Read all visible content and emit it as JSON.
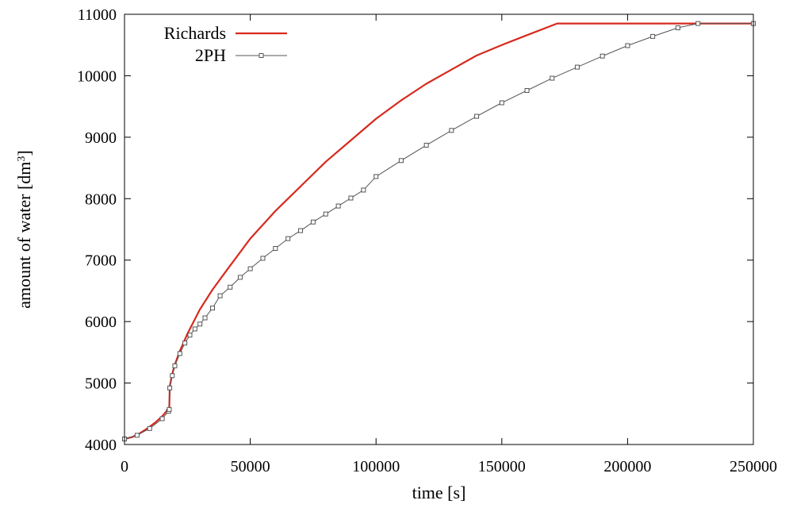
{
  "chart_data": {
    "type": "line",
    "xlabel": "time [s]",
    "ylabel_base": "amount of water [dm",
    "ylabel_sup": "3",
    "ylabel_end": "]",
    "xlim": [
      0,
      250000
    ],
    "ylim": [
      4000,
      11000
    ],
    "x_ticks": [
      0,
      50000,
      100000,
      150000,
      200000,
      250000
    ],
    "y_ticks": [
      4000,
      5000,
      6000,
      7000,
      8000,
      9000,
      10000,
      11000
    ],
    "grid": false,
    "legend_position": "top-left",
    "series": [
      {
        "name": "Richards",
        "color": "#d62a1e",
        "marker": "none",
        "points": [
          [
            0,
            4090
          ],
          [
            3000,
            4120
          ],
          [
            6000,
            4180
          ],
          [
            9000,
            4260
          ],
          [
            12000,
            4350
          ],
          [
            15000,
            4460
          ],
          [
            17500,
            4580
          ],
          [
            17800,
            4600
          ],
          [
            18000,
            4950
          ],
          [
            19000,
            5150
          ],
          [
            20000,
            5300
          ],
          [
            22000,
            5520
          ],
          [
            25000,
            5800
          ],
          [
            30000,
            6200
          ],
          [
            35000,
            6520
          ],
          [
            40000,
            6800
          ],
          [
            50000,
            7350
          ],
          [
            60000,
            7800
          ],
          [
            70000,
            8200
          ],
          [
            80000,
            8600
          ],
          [
            90000,
            8950
          ],
          [
            100000,
            9300
          ],
          [
            110000,
            9600
          ],
          [
            120000,
            9870
          ],
          [
            130000,
            10100
          ],
          [
            140000,
            10330
          ],
          [
            150000,
            10500
          ],
          [
            160000,
            10660
          ],
          [
            172000,
            10850
          ],
          [
            250000,
            10850
          ]
        ]
      },
      {
        "name": "2PH",
        "color": "#555555",
        "marker": "square",
        "points": [
          [
            0,
            4090
          ],
          [
            5000,
            4150
          ],
          [
            10000,
            4260
          ],
          [
            15000,
            4420
          ],
          [
            17500,
            4540
          ],
          [
            17800,
            4570
          ],
          [
            18000,
            4920
          ],
          [
            19000,
            5120
          ],
          [
            20000,
            5280
          ],
          [
            22000,
            5480
          ],
          [
            24000,
            5650
          ],
          [
            26000,
            5780
          ],
          [
            28000,
            5880
          ],
          [
            30000,
            5960
          ],
          [
            32000,
            6060
          ],
          [
            35000,
            6220
          ],
          [
            38000,
            6420
          ],
          [
            42000,
            6560
          ],
          [
            46000,
            6720
          ],
          [
            50000,
            6860
          ],
          [
            55000,
            7030
          ],
          [
            60000,
            7190
          ],
          [
            65000,
            7350
          ],
          [
            70000,
            7480
          ],
          [
            75000,
            7620
          ],
          [
            80000,
            7750
          ],
          [
            85000,
            7880
          ],
          [
            90000,
            8010
          ],
          [
            95000,
            8140
          ],
          [
            100000,
            8360
          ],
          [
            110000,
            8620
          ],
          [
            120000,
            8870
          ],
          [
            130000,
            9110
          ],
          [
            140000,
            9340
          ],
          [
            150000,
            9560
          ],
          [
            160000,
            9760
          ],
          [
            170000,
            9960
          ],
          [
            180000,
            10140
          ],
          [
            190000,
            10320
          ],
          [
            200000,
            10490
          ],
          [
            210000,
            10640
          ],
          [
            220000,
            10780
          ],
          [
            228000,
            10850
          ],
          [
            250000,
            10850
          ]
        ]
      }
    ]
  }
}
